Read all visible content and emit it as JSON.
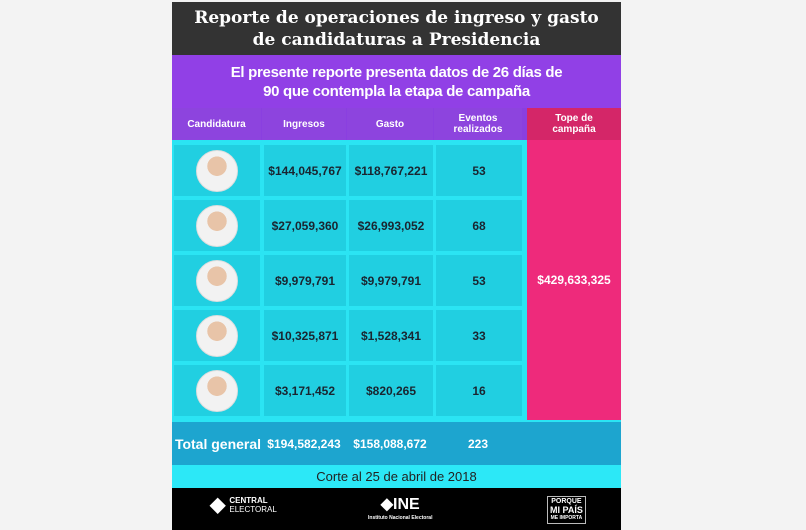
{
  "title": [
    "Reporte de operaciones de ingreso y gasto",
    "de candidaturas a Presidencia"
  ],
  "subtitle": [
    "El presente reporte presenta datos de 26 días de",
    "90 que contempla la etapa de campaña"
  ],
  "headers": {
    "candidatura": "Candidatura",
    "ingresos": "Ingresos",
    "gasto": "Gasto",
    "eventos": "Eventos realizados",
    "tope": "Tope de campaña"
  },
  "rows": [
    {
      "ingresos": "$144,045,767",
      "gasto": "$118,767,221",
      "eventos": "53"
    },
    {
      "ingresos": "$27,059,360",
      "gasto": "$26,993,052",
      "eventos": "68"
    },
    {
      "ingresos": "$9,979,791",
      "gasto": "$9,979,791",
      "eventos": "53"
    },
    {
      "ingresos": "$10,325,871",
      "gasto": "$1,528,341",
      "eventos": "33"
    },
    {
      "ingresos": "$3,171,452",
      "gasto": "$820,265",
      "eventos": "16"
    }
  ],
  "tope_value": "$429,633,325",
  "total": {
    "label": "Total general",
    "ingresos": "$194,582,243",
    "gasto": "$158,088,672",
    "eventos": "223"
  },
  "corte": "Corte al 25 de abril de 2018",
  "footer": {
    "central": [
      "CENTRAL",
      "ELECTORAL"
    ],
    "ine": "INE",
    "ine_sub": "Instituto Nacional Electoral",
    "porque": [
      "PORQUE",
      "MI PAÍS",
      "ME IMPORTA"
    ]
  }
}
